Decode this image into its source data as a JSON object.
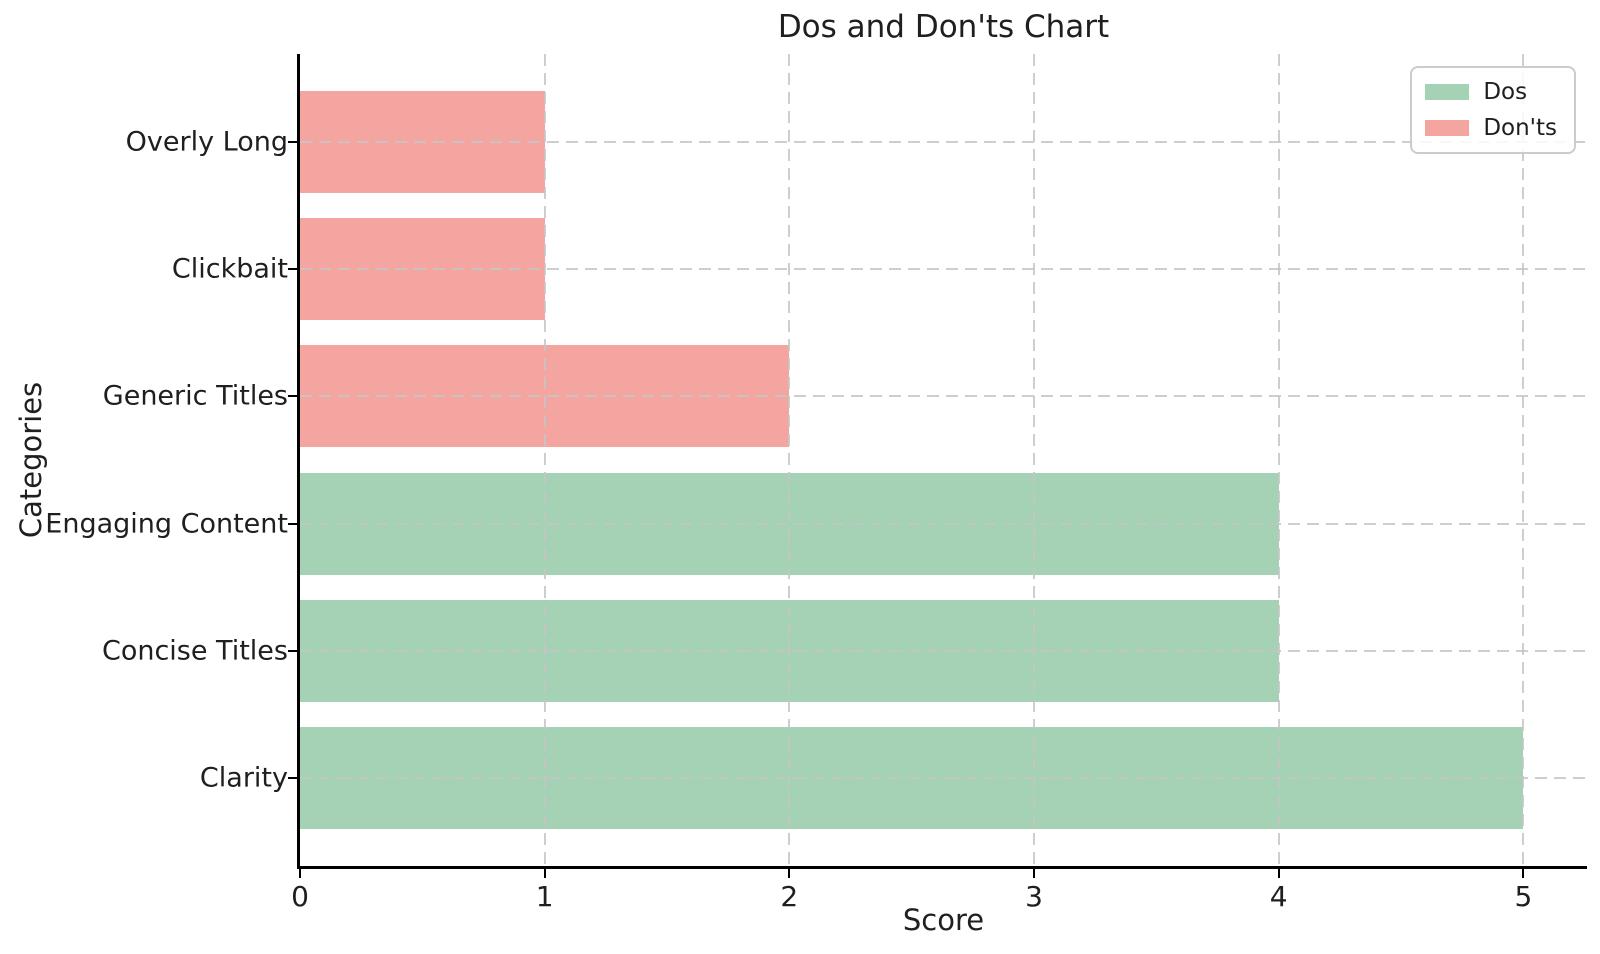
{
  "chart_data": {
    "type": "bar",
    "orientation": "horizontal",
    "title": "Dos and Don'ts Chart",
    "xlabel": "Score",
    "ylabel": "Categories",
    "categories_top_to_bottom": [
      "Overly Long",
      "Clickbait",
      "Generic Titles",
      "Engaging Content",
      "Concise Titles",
      "Clarity"
    ],
    "values_top_to_bottom": [
      1,
      1,
      2,
      4,
      4,
      5
    ],
    "bar_series_top_to_bottom": [
      "Don'ts",
      "Don'ts",
      "Don'ts",
      "Dos",
      "Dos",
      "Dos"
    ],
    "series": [
      {
        "name": "Dos",
        "color": "#a5d1b5",
        "categories": [
          "Engaging Content",
          "Concise Titles",
          "Clarity"
        ],
        "values": [
          4,
          4,
          5
        ]
      },
      {
        "name": "Don'ts",
        "color": "#f4a5a0",
        "categories": [
          "Overly Long",
          "Clickbait",
          "Generic Titles"
        ],
        "values": [
          1,
          1,
          2
        ]
      }
    ],
    "xticks": [
      0,
      1,
      2,
      3,
      4,
      5
    ],
    "xlim": [
      0,
      5.26
    ],
    "bar_height_fraction": 0.8,
    "grid": {
      "style": "dashed",
      "color": "#c5c5c5",
      "on": true
    },
    "legend": {
      "position": "upper-right",
      "entries": [
        {
          "label": "Dos",
          "color": "#a5d1b5"
        },
        {
          "label": "Don'ts",
          "color": "#f4a5a0"
        }
      ]
    },
    "colors": {
      "dos": "#a5d1b5",
      "donts": "#f4a5a0",
      "axis": "#000000",
      "text": "#1f1f1f",
      "background": "#ffffff"
    }
  }
}
